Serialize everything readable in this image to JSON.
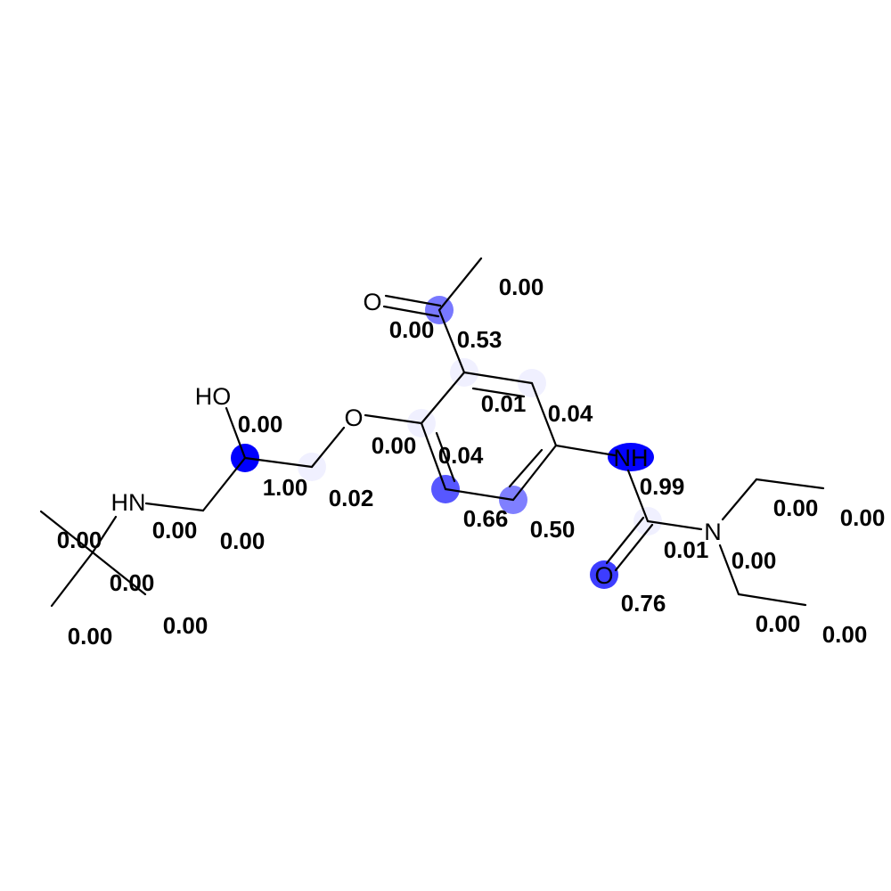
{
  "highlight_color": "#0000ff",
  "atoms": [
    {
      "id": "o_ketone",
      "label": "O",
      "score": "0.00",
      "weight": 0.0
    },
    {
      "id": "c_carbonyl",
      "label": "",
      "score": "0.53",
      "weight": 0.53
    },
    {
      "id": "c_methyl",
      "label": "",
      "score": "0.00",
      "weight": 0.0
    },
    {
      "id": "c_ring_top",
      "label": "",
      "score": "0.01",
      "weight": 0.01
    },
    {
      "id": "c_ring_upright",
      "label": "",
      "score": "0.04",
      "weight": 0.04
    },
    {
      "id": "c_ring_lowright",
      "label": "",
      "score": "0.50",
      "weight": 0.5
    },
    {
      "id": "c_ring_bottom",
      "label": "",
      "score": "0.66",
      "weight": 0.66
    },
    {
      "id": "c_ring_left",
      "label": "",
      "score": "0.04",
      "weight": 0.04
    },
    {
      "id": "o_ether",
      "label": "O",
      "score": "0.00",
      "weight": 0.0
    },
    {
      "id": "c_ch2_ether",
      "label": "",
      "score": "0.02",
      "weight": 0.02
    },
    {
      "id": "c_choh",
      "label": "",
      "score": "1.00",
      "weight": 1.0
    },
    {
      "id": "o_hydroxyl",
      "label": "HO",
      "score": "0.00",
      "weight": 0.0
    },
    {
      "id": "c_ch2_amine",
      "label": "",
      "score": "0.00",
      "weight": 0.0
    },
    {
      "id": "n_amine",
      "label": "HN",
      "score": "0.00",
      "weight": 0.0
    },
    {
      "id": "c_tbu_center",
      "label": "",
      "score": "0.00",
      "weight": 0.0
    },
    {
      "id": "c_tbu_1",
      "label": "",
      "score": "0.00",
      "weight": 0.0
    },
    {
      "id": "c_tbu_2",
      "label": "",
      "score": "0.00",
      "weight": 0.0
    },
    {
      "id": "c_tbu_3",
      "label": "",
      "score": "0.00",
      "weight": 0.0
    },
    {
      "id": "n_amide",
      "label": "NH",
      "score": "0.99",
      "weight": 0.99
    },
    {
      "id": "c_urea",
      "label": "",
      "score": "0.01",
      "weight": 0.01
    },
    {
      "id": "o_urea",
      "label": "O",
      "score": "0.76",
      "weight": 0.76
    },
    {
      "id": "n_diethyl",
      "label": "N",
      "score": "0.00",
      "weight": 0.0
    },
    {
      "id": "c_ethyl1_ch2",
      "label": "",
      "score": "0.00",
      "weight": 0.0
    },
    {
      "id": "c_ethyl1_ch3",
      "label": "",
      "score": "0.00",
      "weight": 0.0
    },
    {
      "id": "c_ethyl2_ch2",
      "label": "",
      "score": "0.00",
      "weight": 0.0
    },
    {
      "id": "c_ethyl2_ch3",
      "label": "",
      "score": "0.00",
      "weight": 0.0
    }
  ]
}
